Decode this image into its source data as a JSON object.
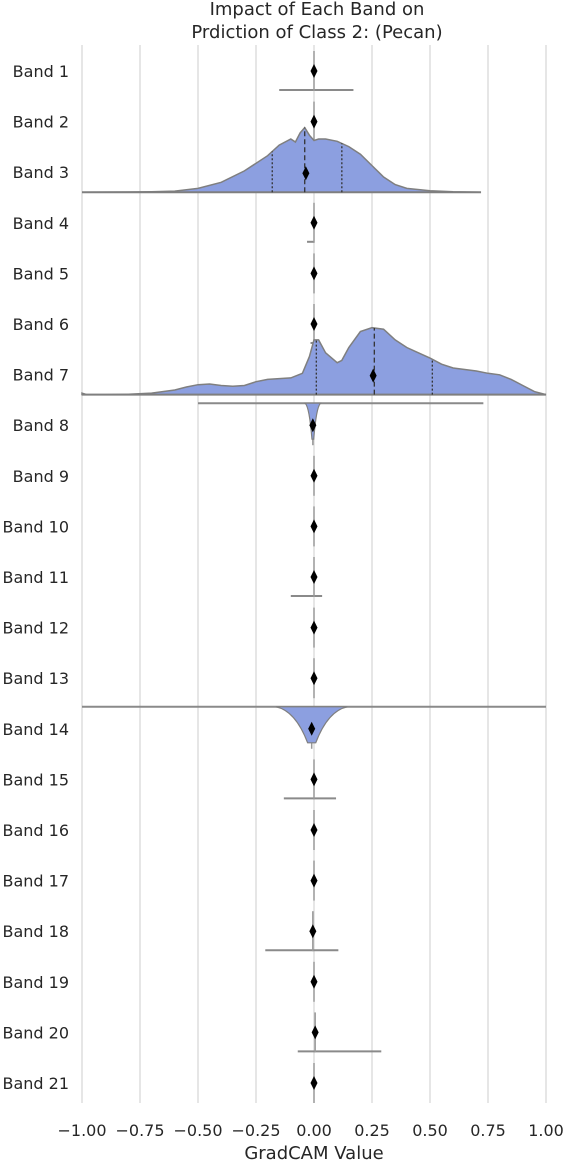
{
  "chart_data": {
    "type": "violin",
    "title_lines": [
      "Impact of Each Band on",
      "Prdiction of Class 2: (Pecan)"
    ],
    "xlabel": "GradCAM Value",
    "ylabel": "",
    "xlim": [
      -1.0,
      1.0
    ],
    "xticks": [
      -1.0,
      -0.75,
      -0.5,
      -0.25,
      0.0,
      0.25,
      0.5,
      0.75,
      1.0
    ],
    "xtick_labels": [
      "−1.00",
      "−0.75",
      "−0.50",
      "−0.25",
      "0.00",
      "0.25",
      "0.50",
      "0.75",
      "1.00"
    ],
    "grid": "vertical",
    "fill_color": "#8c9fe0",
    "outline_color": "#7f7f7f",
    "categories": [
      "Band 1",
      "Band 2",
      "Band 3",
      "Band 4",
      "Band 5",
      "Band 6",
      "Band 7",
      "Band 8",
      "Band 9",
      "Band 10",
      "Band 11",
      "Band 12",
      "Band 13",
      "Band 14",
      "Band 15",
      "Band 16",
      "Band 17",
      "Band 18",
      "Band 19",
      "Band 20",
      "Band 21"
    ],
    "bands": [
      {
        "mean": 0.0,
        "range": [
          -0.15,
          0.17
        ],
        "density": "spike"
      },
      {
        "mean": 0.0,
        "range": [
          -0.02,
          0.02
        ],
        "density": "spike"
      },
      {
        "mean": -0.035,
        "range": [
          -1.0,
          0.72
        ],
        "quartiles": [
          -0.18,
          -0.04,
          0.12
        ],
        "density": [
          [
            -1.0,
            0
          ],
          [
            -0.8,
            0.002
          ],
          [
            -0.7,
            0.006
          ],
          [
            -0.6,
            0.015
          ],
          [
            -0.5,
            0.05
          ],
          [
            -0.4,
            0.13
          ],
          [
            -0.3,
            0.28
          ],
          [
            -0.2,
            0.48
          ],
          [
            -0.15,
            0.62
          ],
          [
            -0.1,
            0.7
          ],
          [
            -0.08,
            0.66
          ],
          [
            -0.06,
            0.78
          ],
          [
            -0.04,
            0.85
          ],
          [
            -0.02,
            0.75
          ],
          [
            0.0,
            0.68
          ],
          [
            0.02,
            0.7
          ],
          [
            0.05,
            0.7
          ],
          [
            0.1,
            0.67
          ],
          [
            0.15,
            0.6
          ],
          [
            0.2,
            0.5
          ],
          [
            0.25,
            0.35
          ],
          [
            0.3,
            0.2
          ],
          [
            0.35,
            0.1
          ],
          [
            0.4,
            0.05
          ],
          [
            0.5,
            0.02
          ],
          [
            0.6,
            0.005
          ],
          [
            0.72,
            0
          ]
        ]
      },
      {
        "mean": 0.0,
        "range": [
          -0.03,
          0.0
        ],
        "density": "spike"
      },
      {
        "mean": 0.0,
        "range": [
          -0.005,
          0.005
        ],
        "density": "spike"
      },
      {
        "mean": 0.0,
        "range": [
          -0.015,
          0.015
        ],
        "density": "spike"
      },
      {
        "mean": 0.255,
        "range": [
          -1.0,
          1.0
        ],
        "quartiles": [
          0.01,
          0.26,
          0.51
        ],
        "density": [
          [
            -1.0,
            0.02
          ],
          [
            -0.98,
            0
          ],
          [
            -0.9,
            0
          ],
          [
            -0.8,
            0.005
          ],
          [
            -0.7,
            0.02
          ],
          [
            -0.6,
            0.06
          ],
          [
            -0.55,
            0.1
          ],
          [
            -0.5,
            0.13
          ],
          [
            -0.45,
            0.14
          ],
          [
            -0.4,
            0.12
          ],
          [
            -0.35,
            0.11
          ],
          [
            -0.3,
            0.12
          ],
          [
            -0.25,
            0.17
          ],
          [
            -0.2,
            0.2
          ],
          [
            -0.15,
            0.21
          ],
          [
            -0.1,
            0.22
          ],
          [
            -0.05,
            0.28
          ],
          [
            -0.02,
            0.5
          ],
          [
            0.0,
            0.72
          ],
          [
            0.02,
            0.72
          ],
          [
            0.05,
            0.55
          ],
          [
            0.1,
            0.42
          ],
          [
            0.12,
            0.45
          ],
          [
            0.15,
            0.62
          ],
          [
            0.2,
            0.83
          ],
          [
            0.25,
            0.88
          ],
          [
            0.3,
            0.86
          ],
          [
            0.35,
            0.72
          ],
          [
            0.4,
            0.62
          ],
          [
            0.45,
            0.55
          ],
          [
            0.5,
            0.48
          ],
          [
            0.55,
            0.4
          ],
          [
            0.6,
            0.35
          ],
          [
            0.65,
            0.33
          ],
          [
            0.7,
            0.31
          ],
          [
            0.75,
            0.28
          ],
          [
            0.8,
            0.26
          ],
          [
            0.85,
            0.2
          ],
          [
            0.9,
            0.12
          ],
          [
            0.95,
            0.04
          ],
          [
            1.0,
            0.0
          ]
        ]
      },
      {
        "mean": -0.005,
        "range": [
          -0.5,
          0.73
        ],
        "density": "narrow",
        "half_width": 0.015
      },
      {
        "mean": 0.0,
        "range": [
          -0.005,
          0.005
        ],
        "density": "spike"
      },
      {
        "mean": 0.0,
        "range": [
          -0.005,
          0.005
        ],
        "density": "spike"
      },
      {
        "mean": 0.0,
        "range": [
          -0.1,
          0.035
        ],
        "density": "spike"
      },
      {
        "mean": 0.0,
        "range": [
          -0.005,
          0.005
        ],
        "density": "spike"
      },
      {
        "mean": 0.0,
        "range": [
          -0.005,
          0.005
        ],
        "density": "spike"
      },
      {
        "mean": -0.01,
        "range": [
          -1.0,
          1.0
        ],
        "density": "narrow",
        "half_width": 0.07
      },
      {
        "mean": 0.0,
        "range": [
          -0.13,
          0.095
        ],
        "density": "spike"
      },
      {
        "mean": 0.0,
        "range": [
          -0.005,
          0.005
        ],
        "density": "spike"
      },
      {
        "mean": 0.0,
        "range": [
          -0.005,
          0.005
        ],
        "density": "spike"
      },
      {
        "mean": -0.005,
        "range": [
          -0.21,
          0.105
        ],
        "density": "spike"
      },
      {
        "mean": 0.0,
        "range": [
          -0.005,
          0.005
        ],
        "density": "spike"
      },
      {
        "mean": 0.005,
        "range": [
          -0.07,
          0.29
        ],
        "density": "spike"
      },
      {
        "mean": 0.0,
        "range": [
          -0.005,
          0.005
        ],
        "density": "spike"
      }
    ]
  }
}
